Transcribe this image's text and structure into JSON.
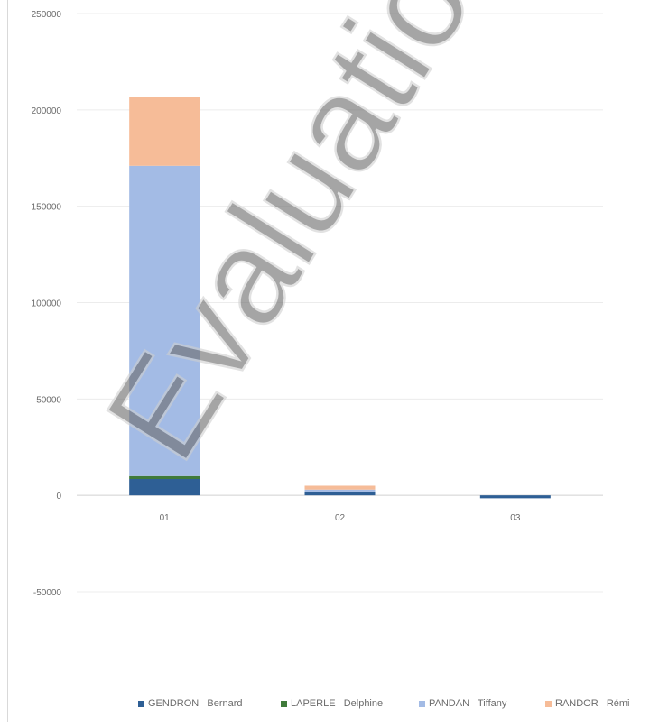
{
  "chart_data": {
    "type": "bar",
    "stacked": true,
    "categories": [
      "01",
      "02",
      "03"
    ],
    "y_ticks": [
      "250000",
      "200000",
      "150000",
      "100000",
      "50000",
      "0",
      "-50000"
    ],
    "ylim": [
      -50000,
      250000
    ],
    "grid": true,
    "legend_position": "bottom",
    "series": [
      {
        "name": "GENDRON   Bernard",
        "color": "#2e5f95",
        "values": [
          8500,
          2000,
          -1500
        ]
      },
      {
        "name": "LAPERLE   Delphine",
        "color": "#3f7a3a",
        "values": [
          1500,
          0,
          0
        ]
      },
      {
        "name": "PANDAN   Tiffany",
        "color": "#a3bbe5",
        "values": [
          161000,
          1000,
          0
        ]
      },
      {
        "name": "RANDOR   Rémi",
        "color": "#f6bc98",
        "values": [
          35500,
          2000,
          0
        ]
      }
    ]
  },
  "watermark": {
    "text": "Evaluation"
  }
}
